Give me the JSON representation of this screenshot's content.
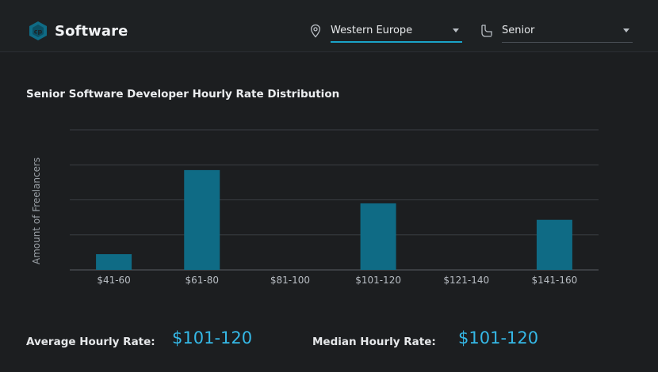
{
  "header": {
    "brand_name": "Software",
    "region_select": {
      "value": "Western Europe",
      "icon": "location-pin-icon"
    },
    "seniority_select": {
      "value": "Senior",
      "icon": "user-level-icon"
    }
  },
  "main": {
    "chart_title": "Senior Software Developer Hourly Rate Distribution",
    "stats": {
      "average_label": "Average Hourly Rate:",
      "average_value": "$101-120",
      "median_label": "Median Hourly Rate:",
      "median_value": "$101-120"
    }
  },
  "colors": {
    "bar": "#0f6b85",
    "accent": "#1aa3c8",
    "stat_value": "#35b8e6",
    "background": "#1c1e20"
  },
  "chart_data": {
    "type": "bar",
    "title": "Senior Software Developer Hourly Rate Distribution",
    "xlabel": "",
    "ylabel": "Amount of Freelancers",
    "categories": [
      "$41-60",
      "$61-80",
      "$81-100",
      "$101-120",
      "$121-140",
      "$141-160"
    ],
    "values": [
      0.45,
      2.85,
      0,
      1.9,
      0,
      1.43
    ],
    "ylim": [
      0,
      4
    ],
    "grid": true,
    "y_tick_labels_shown": false
  }
}
